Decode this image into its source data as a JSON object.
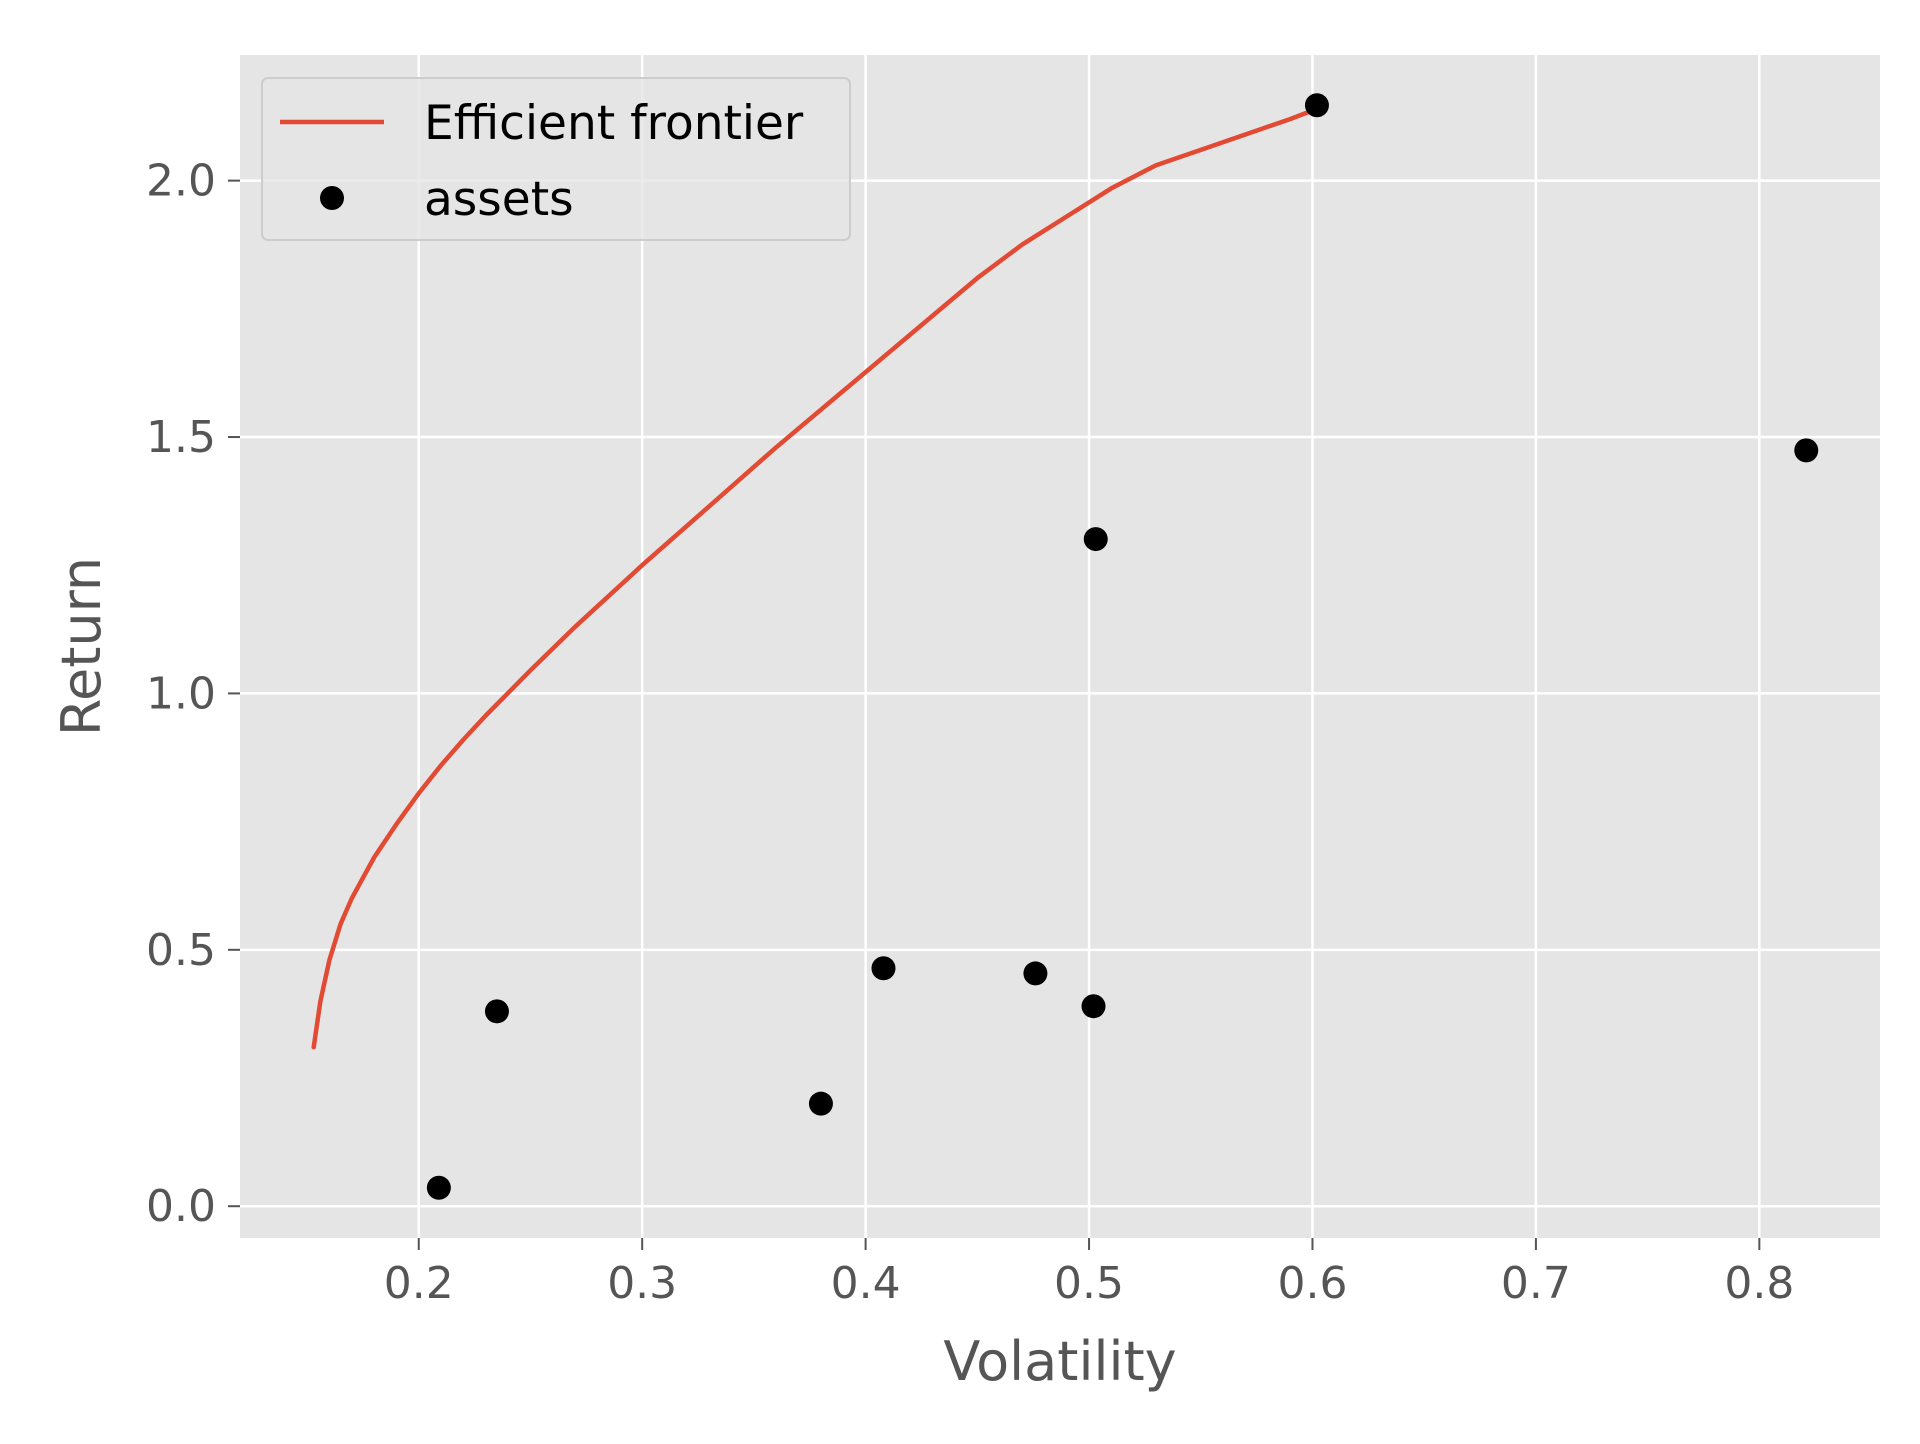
{
  "chart_data": {
    "type": "scatter",
    "title": "",
    "xlabel": "Volatility",
    "ylabel": "Return",
    "xlim": [
      0.12,
      0.854
    ],
    "ylim": [
      -0.062,
      2.245
    ],
    "xticks": [
      0.2,
      0.3,
      0.4,
      0.5,
      0.6,
      0.7,
      0.8
    ],
    "xtick_labels": [
      "0.2",
      "0.3",
      "0.4",
      "0.5",
      "0.6",
      "0.7",
      "0.8"
    ],
    "yticks": [
      0.0,
      0.5,
      1.0,
      1.5,
      2.0
    ],
    "ytick_labels": [
      "0.0",
      "0.5",
      "1.0",
      "1.5",
      "2.0"
    ],
    "grid": true,
    "legend_position": "top-left",
    "series": [
      {
        "name": "Efficient frontier",
        "kind": "line",
        "color": "#E24A33",
        "x": [
          0.153,
          0.156,
          0.16,
          0.165,
          0.17,
          0.18,
          0.19,
          0.2,
          0.21,
          0.22,
          0.23,
          0.25,
          0.27,
          0.3,
          0.33,
          0.36,
          0.39,
          0.42,
          0.45,
          0.47,
          0.49,
          0.51,
          0.53,
          0.55,
          0.57,
          0.59,
          0.602
        ],
        "y": [
          0.31,
          0.4,
          0.48,
          0.55,
          0.6,
          0.68,
          0.745,
          0.805,
          0.86,
          0.91,
          0.957,
          1.045,
          1.13,
          1.25,
          1.365,
          1.48,
          1.59,
          1.7,
          1.81,
          1.875,
          1.93,
          1.985,
          2.03,
          2.06,
          2.09,
          2.12,
          2.14
        ]
      },
      {
        "name": "assets",
        "kind": "scatter",
        "color": "#000000",
        "x": [
          0.209,
          0.235,
          0.38,
          0.408,
          0.476,
          0.502,
          0.503,
          0.602,
          0.821
        ],
        "y": [
          0.036,
          0.38,
          0.2,
          0.464,
          0.454,
          0.39,
          1.301,
          2.147,
          1.474
        ]
      }
    ]
  },
  "colors": {
    "plot_background": "#E5E5E5",
    "grid": "#FFFFFF",
    "tick_text": "#555555"
  }
}
